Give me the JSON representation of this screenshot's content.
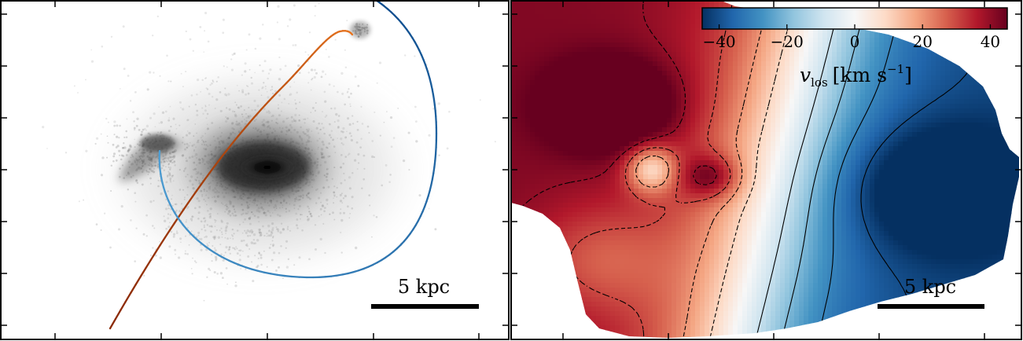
{
  "panels": [
    {
      "id": "left",
      "scale_bar_label": "5 kpc",
      "orbit_colors": {
        "orange_start": "#8b2a06",
        "orange_end": "#e8741e",
        "blue_start": "#4f9fd4",
        "blue_end": "#0d4c8d"
      }
    },
    {
      "id": "right",
      "scale_bar_label": "5 kpc",
      "quantity_label": "v",
      "quantity_subscript": "los",
      "unit_label": "[km s",
      "unit_exponent": "−1",
      "unit_close": "]"
    }
  ],
  "chart_data": {
    "type": "heatmap",
    "colorbar": {
      "range": [
        -45,
        45
      ],
      "ticks": [
        -40,
        -20,
        0,
        20,
        40
      ],
      "tick_labels": [
        "−40",
        "−20",
        "0",
        "20",
        "40"
      ],
      "colormap": "RdBu_r",
      "colors": [
        "#053061",
        "#2166ac",
        "#4393c3",
        "#92c5de",
        "#d1e5f0",
        "#f7f7f7",
        "#fddbc7",
        "#f4a582",
        "#d6604d",
        "#b2182b",
        "#67001f"
      ]
    },
    "contour_levels": [
      -40,
      -30,
      -20,
      -10,
      10,
      20,
      30,
      40
    ],
    "contour_styles": {
      "negative": "solid",
      "positive": "dashed"
    },
    "scale_bar_kpc": 5
  }
}
